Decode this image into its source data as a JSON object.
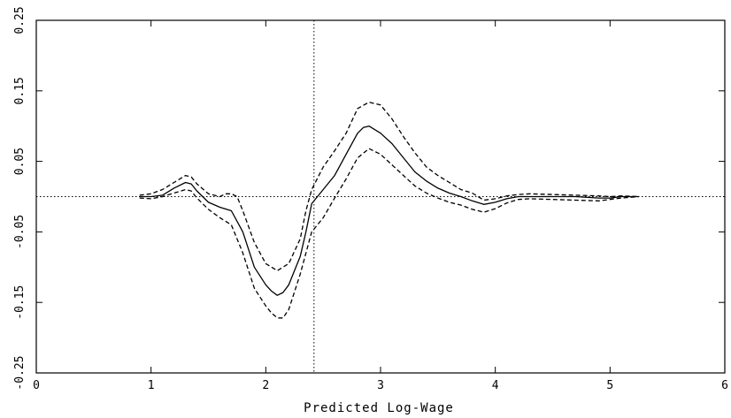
{
  "chart_data": {
    "type": "line",
    "title": "",
    "xlabel": "Predicted Log-Wage",
    "ylabel": "",
    "xlim": [
      0,
      6
    ],
    "ylim": [
      -0.25,
      0.25
    ],
    "xticks": [
      0,
      1,
      2,
      3,
      4,
      5,
      6
    ],
    "xtick_labels": [
      "0",
      "1",
      "2",
      "3",
      "4",
      "5",
      "6"
    ],
    "yticks": [
      -0.25,
      -0.15,
      -0.05,
      0.05,
      0.15,
      0.25
    ],
    "ytick_labels": [
      "-0.25",
      "-0.15",
      "-0.05",
      "0.05",
      "0.15",
      "0.25"
    ],
    "grid": false,
    "legend": "none",
    "reference_lines": {
      "horizontal_y": 0.0,
      "vertical_x": 2.42
    },
    "series": [
      {
        "style": "solid",
        "x": [
          0.9,
          1.0,
          1.1,
          1.2,
          1.3,
          1.35,
          1.4,
          1.5,
          1.6,
          1.7,
          1.8,
          1.9,
          2.0,
          2.05,
          2.1,
          2.15,
          2.2,
          2.3,
          2.35,
          2.4,
          2.5,
          2.6,
          2.7,
          2.8,
          2.85,
          2.9,
          3.0,
          3.1,
          3.2,
          3.3,
          3.4,
          3.5,
          3.6,
          3.7,
          3.8,
          3.9,
          4.0,
          4.1,
          4.2,
          4.3,
          4.5,
          4.7,
          4.9,
          5.0,
          5.1,
          5.25
        ],
        "y": [
          0.0,
          0.0,
          0.002,
          0.012,
          0.02,
          0.018,
          0.008,
          -0.008,
          -0.015,
          -0.02,
          -0.05,
          -0.1,
          -0.125,
          -0.134,
          -0.14,
          -0.136,
          -0.125,
          -0.085,
          -0.05,
          -0.01,
          0.01,
          0.03,
          0.06,
          0.09,
          0.098,
          0.1,
          0.09,
          0.075,
          0.055,
          0.035,
          0.022,
          0.012,
          0.005,
          0.0,
          -0.006,
          -0.011,
          -0.008,
          -0.003,
          0.0,
          0.0,
          0.0,
          0.0,
          -0.002,
          -0.002,
          0.0,
          0.0
        ]
      },
      {
        "style": "dashed",
        "x": [
          0.9,
          1.0,
          1.1,
          1.2,
          1.3,
          1.35,
          1.4,
          1.5,
          1.6,
          1.65,
          1.7,
          1.75,
          1.8,
          1.9,
          2.0,
          2.1,
          2.2,
          2.3,
          2.35,
          2.4,
          2.5,
          2.6,
          2.7,
          2.8,
          2.9,
          3.0,
          3.1,
          3.2,
          3.3,
          3.4,
          3.5,
          3.6,
          3.7,
          3.8,
          3.9,
          4.0,
          4.1,
          4.2,
          4.3,
          4.5,
          4.7,
          4.9,
          5.0,
          5.1,
          5.25
        ],
        "y": [
          0.002,
          0.004,
          0.01,
          0.02,
          0.03,
          0.028,
          0.018,
          0.004,
          0.0,
          0.004,
          0.004,
          0.0,
          -0.02,
          -0.065,
          -0.095,
          -0.105,
          -0.095,
          -0.06,
          -0.02,
          0.01,
          0.042,
          0.065,
          0.09,
          0.125,
          0.134,
          0.13,
          0.11,
          0.085,
          0.062,
          0.042,
          0.03,
          0.02,
          0.01,
          0.005,
          -0.005,
          -0.003,
          0.001,
          0.003,
          0.004,
          0.003,
          0.002,
          0.001,
          0.0,
          0.001,
          0.0
        ]
      },
      {
        "style": "dashed",
        "x": [
          0.9,
          1.0,
          1.1,
          1.2,
          1.3,
          1.35,
          1.4,
          1.5,
          1.6,
          1.7,
          1.8,
          1.9,
          2.0,
          2.05,
          2.1,
          2.15,
          2.2,
          2.3,
          2.4,
          2.5,
          2.6,
          2.7,
          2.8,
          2.9,
          3.0,
          3.1,
          3.2,
          3.3,
          3.4,
          3.5,
          3.6,
          3.7,
          3.8,
          3.9,
          4.0,
          4.1,
          4.2,
          4.3,
          4.5,
          4.7,
          4.9,
          5.0,
          5.1,
          5.25
        ],
        "y": [
          -0.002,
          -0.003,
          0.0,
          0.005,
          0.01,
          0.008,
          -0.002,
          -0.018,
          -0.03,
          -0.04,
          -0.08,
          -0.13,
          -0.155,
          -0.165,
          -0.172,
          -0.172,
          -0.16,
          -0.11,
          -0.05,
          -0.03,
          -0.002,
          0.025,
          0.055,
          0.068,
          0.06,
          0.045,
          0.03,
          0.015,
          0.005,
          -0.002,
          -0.008,
          -0.012,
          -0.018,
          -0.022,
          -0.017,
          -0.009,
          -0.004,
          -0.003,
          -0.004,
          -0.005,
          -0.006,
          -0.004,
          -0.002,
          0.0
        ]
      }
    ]
  }
}
